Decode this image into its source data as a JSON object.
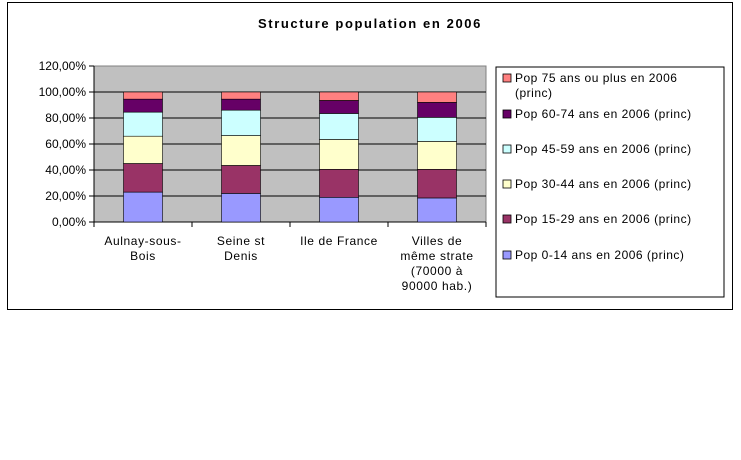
{
  "chart_data": {
    "type": "bar",
    "stacked": true,
    "percent_stacked": true,
    "title": "Structure population en 2006",
    "categories": [
      [
        "Aulnay-sous-",
        "Bois"
      ],
      [
        "Seine st",
        "Denis"
      ],
      [
        "Ile de France"
      ],
      [
        "Villes de",
        "même strate",
        "(70000 à",
        "90000 hab.)"
      ]
    ],
    "y_ticks": [
      "0,00%",
      "20,00%",
      "40,00%",
      "60,00%",
      "80,00%",
      "100,00%",
      "120,00%"
    ],
    "ylim": [
      0,
      120
    ],
    "grid": true,
    "legend_position": "right",
    "series": [
      {
        "name": "Pop 0-14 ans en 2006 (princ)",
        "color": "#9999ff",
        "values": [
          23,
          22,
          19,
          18.5
        ]
      },
      {
        "name": "Pop 15-29 ans en 2006 (princ)",
        "color": "#993366",
        "values": [
          22,
          21.5,
          21.5,
          22
        ]
      },
      {
        "name": "Pop 30-44 ans en 2006 (princ)",
        "color": "#ffffcc",
        "values": [
          21,
          23,
          23,
          21.5
        ]
      },
      {
        "name": "Pop 45-59 ans en 2006 (princ)",
        "color": "#ccffff",
        "values": [
          18.5,
          19.5,
          20,
          18.5
        ]
      },
      {
        "name": "Pop 60-74 ans en 2006 (princ)",
        "color": "#660066",
        "values": [
          10,
          8.5,
          10,
          11.5
        ]
      },
      {
        "name": "Pop 75 ans ou plus en 2006 (princ)",
        "color": "#ff8080",
        "values": [
          5.5,
          5.5,
          6.5,
          8
        ]
      }
    ],
    "legend_labels": [
      {
        "text": [
          "Pop 75 ans ou plus en 2006",
          "(princ)"
        ],
        "color": "#ff8080"
      },
      {
        "text": [
          "Pop 60-74 ans en 2006 (princ)"
        ],
        "color": "#660066"
      },
      {
        "text": [
          "Pop 45-59 ans en 2006 (princ)"
        ],
        "color": "#ccffff"
      },
      {
        "text": [
          "Pop 30-44 ans en 2006 (princ)"
        ],
        "color": "#ffffcc"
      },
      {
        "text": [
          "Pop 15-29 ans en 2006 (princ)"
        ],
        "color": "#993366"
      },
      {
        "text": [
          "Pop 0-14 ans en 2006 (princ)"
        ],
        "color": "#9999ff"
      }
    ],
    "plot_background": "#c0c0c0"
  }
}
